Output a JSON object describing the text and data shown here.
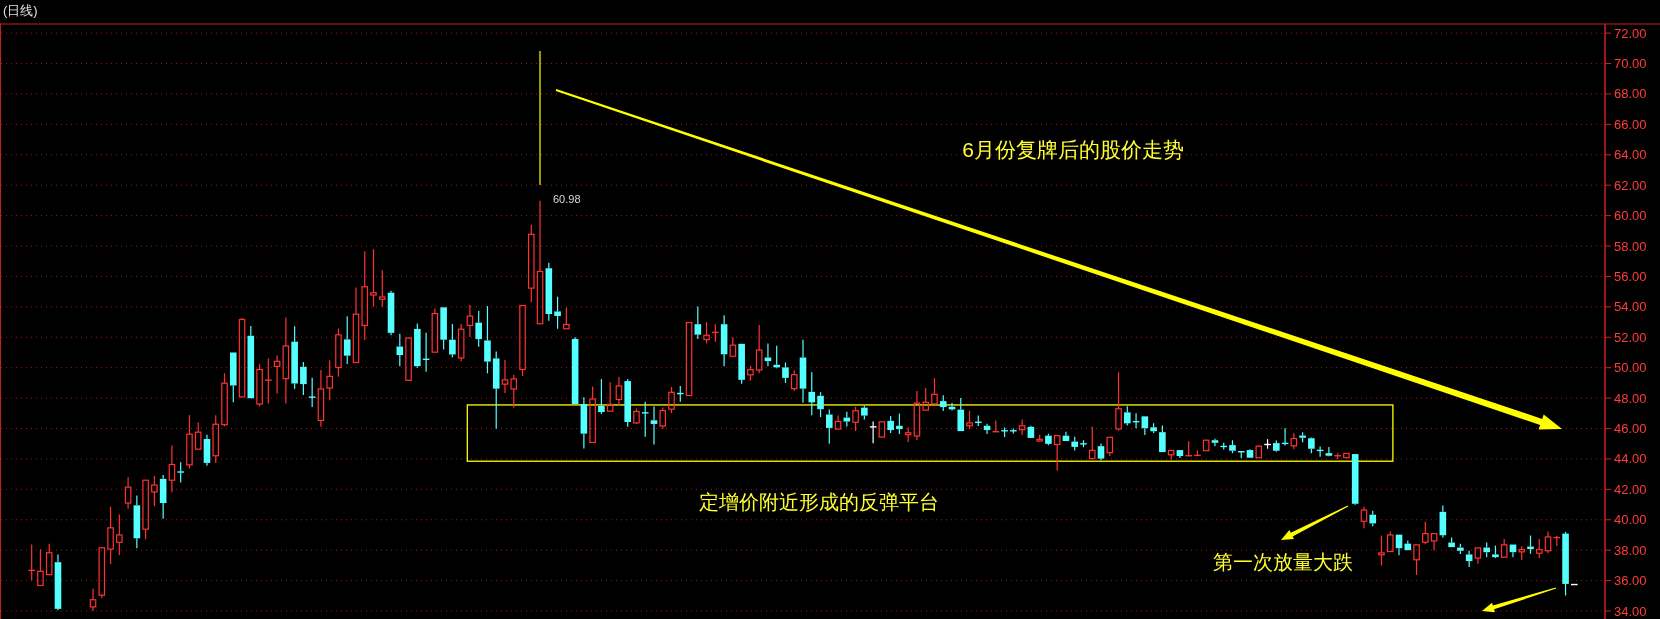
{
  "chart_data": {
    "type": "candlestick",
    "title": "(日线)",
    "categories": [
      null,
      null,
      null,
      null,
      null,
      null,
      null,
      null,
      null,
      null,
      null,
      null,
      null,
      null,
      null,
      null,
      null,
      null,
      null,
      null,
      null,
      null,
      null,
      null,
      null,
      null,
      null,
      null,
      null,
      null,
      null,
      null,
      null,
      null,
      null,
      null,
      null,
      null,
      null,
      null,
      null,
      null,
      null,
      null,
      null,
      null,
      null,
      null,
      null,
      null,
      null,
      null,
      null,
      null,
      null,
      null,
      null,
      null,
      null,
      null,
      null,
      null,
      null,
      null,
      null,
      null,
      null,
      null,
      null,
      null,
      null,
      null,
      null,
      null,
      null,
      null,
      null,
      null,
      null,
      null,
      null,
      null,
      null,
      null,
      null,
      null,
      null,
      null,
      null,
      null,
      null,
      null,
      null,
      null,
      null,
      null,
      null,
      null,
      null,
      null,
      null,
      null,
      null,
      null,
      null,
      null,
      null,
      null,
      null,
      null,
      null,
      null,
      null,
      null,
      null,
      null,
      null,
      null,
      null,
      null,
      null,
      null,
      null,
      null,
      null,
      null,
      null,
      null,
      null,
      null,
      null,
      null,
      null,
      null,
      null,
      null,
      null,
      null,
      null,
      null,
      null,
      null,
      null,
      null,
      null,
      null,
      null,
      null,
      null,
      null,
      null,
      null,
      null,
      null,
      null,
      null,
      null,
      null,
      null,
      null,
      null,
      null,
      null,
      null,
      null,
      null,
      null,
      null,
      null,
      null,
      null,
      null,
      null,
      null,
      null,
      null,
      null,
      null,
      null,
      null,
      null,
      null,
      null
    ],
    "ohlc": [
      null,
      null,
      null,
      [
        36.67,
        38.37,
        36.03,
        36.67
      ],
      [
        35.68,
        38.05,
        35.64,
        36.61
      ],
      [
        36.39,
        38.43,
        36.39,
        37.83
      ],
      [
        37.21,
        37.72,
        34.05,
        34.14
      ],
      null,
      null,
      null,
      [
        34.27,
        35.47,
        34.0,
        34.74
      ],
      [
        35.04,
        38.16,
        34.85,
        38.16
      ],
      [
        38.07,
        40.86,
        37.1,
        39.47
      ],
      [
        38.52,
        40.35,
        37.68,
        39.0
      ],
      [
        41.1,
        42.8,
        40.73,
        42.15
      ],
      [
        40.95,
        41.59,
        38.13,
        38.78
      ],
      [
        39.38,
        42.6,
        38.71,
        42.6
      ],
      [
        41.83,
        42.88,
        40.88,
        42.28
      ],
      [
        42.69,
        42.95,
        40.07,
        41.1
      ],
      [
        42.6,
        44.88,
        41.81,
        43.63
      ],
      [
        43.14,
        43.78,
        42.45,
        43.14
      ],
      [
        43.61,
        46.88,
        43.37,
        45.63
      ],
      [
        44.64,
        46.4,
        44.64,
        45.76
      ],
      [
        45.31,
        45.59,
        43.55,
        43.74
      ],
      [
        44.21,
        46.88,
        43.74,
        46.28
      ],
      [
        46.25,
        49.63,
        46.15,
        48.98
      ],
      [
        51.0,
        51.0,
        47.72,
        48.83
      ],
      [
        48.08,
        53.26,
        48.08,
        53.17
      ],
      [
        52.1,
        52.74,
        47.99,
        47.99
      ],
      [
        47.61,
        50.23,
        47.46,
        49.88
      ],
      [
        49.18,
        50.61,
        47.65,
        49.18
      ],
      [
        50.08,
        50.81,
        48.3,
        50.42
      ],
      [
        49.28,
        53.3,
        47.65,
        51.43
      ],
      [
        51.71,
        52.72,
        48.62,
        48.96
      ],
      [
        50.06,
        50.38,
        48.21,
        48.92
      ],
      [
        48.06,
        49.33,
        47.41,
        48.06
      ],
      [
        46.53,
        49.84,
        46.12,
        48.6
      ],
      [
        48.66,
        50.49,
        47.86,
        49.43
      ],
      [
        50.01,
        52.57,
        49.41,
        52.16
      ],
      [
        51.86,
        53.39,
        50.25,
        50.79
      ],
      [
        50.34,
        55.28,
        50.34,
        53.52
      ],
      [
        52.78,
        57.66,
        51.82,
        55.32
      ],
      [
        54.78,
        57.79,
        54.01,
        54.93
      ],
      [
        54.5,
        56.41,
        54.01,
        54.65
      ],
      [
        54.93,
        55.06,
        52.14,
        52.29
      ],
      [
        51.39,
        52.23,
        50.1,
        50.83
      ],
      [
        49.17,
        52.0,
        49.17,
        51.95
      ],
      [
        52.55,
        52.9,
        50.0,
        50.1
      ],
      [
        50.55,
        52.29,
        49.73,
        50.55
      ],
      [
        51.02,
        53.9,
        51.02,
        53.56
      ],
      [
        53.97,
        53.97,
        51.19,
        51.84
      ],
      [
        51.84,
        52.87,
        50.68,
        50.87
      ],
      [
        50.64,
        52.87,
        50.42,
        52.53
      ],
      [
        52.78,
        54.12,
        52.01,
        53.39
      ],
      [
        52.96,
        53.73,
        51.37,
        51.88
      ],
      [
        51.79,
        54.05,
        49.63,
        50.4
      ],
      [
        50.61,
        51.07,
        45.99,
        48.62
      ],
      [
        48.92,
        50.51,
        48.34,
        49.2
      ],
      [
        48.6,
        49.54,
        47.37,
        49.26
      ],
      [
        49.88,
        54.09,
        49.45,
        54.09
      ],
      [
        55.23,
        59.4,
        54.31,
        58.77
      ],
      [
        52.89,
        60.98,
        52.89,
        56.33
      ],
      [
        56.54,
        56.9,
        53.08,
        53.53
      ],
      [
        53.7,
        54.67,
        52.56,
        53.4
      ],
      [
        52.56,
        53.94,
        52.56,
        52.84
      ],
      [
        51.89,
        52.0,
        47.61,
        47.61
      ],
      [
        47.61,
        48.06,
        44.69,
        45.66
      ],
      [
        45.08,
        48.77,
        45.04,
        47.94
      ],
      [
        47.48,
        49.25,
        46.95,
        47.08
      ],
      [
        47.14,
        49.05,
        47.14,
        47.59
      ],
      [
        47.91,
        49.38,
        47.53,
        48.8
      ],
      [
        49.12,
        49.25,
        46.11,
        46.43
      ],
      [
        46.37,
        47.31,
        46.3,
        47.12
      ],
      [
        47.03,
        47.76,
        45.46,
        47.03
      ],
      [
        46.54,
        47.44,
        44.95,
        46.3
      ],
      [
        46.17,
        47.38,
        45.98,
        47.18
      ],
      [
        47.27,
        48.73,
        47.01,
        48.38
      ],
      [
        48.3,
        48.8,
        47.76,
        48.3
      ],
      [
        48.17,
        52.97,
        48.17,
        52.97
      ],
      [
        52.86,
        54.02,
        51.89,
        52.17
      ],
      [
        51.85,
        52.99,
        51.59,
        52.13
      ],
      [
        52.32,
        52.86,
        51.7,
        52.32
      ],
      [
        52.86,
        53.44,
        50.09,
        50.88
      ],
      [
        50.75,
        52.0,
        50.75,
        51.48
      ],
      [
        51.57,
        51.57,
        48.95,
        49.2
      ],
      [
        49.53,
        50.13,
        49.14,
        49.87
      ],
      [
        49.85,
        52.8,
        49.63,
        51.16
      ],
      [
        50.67,
        51.59,
        50.09,
        50.43
      ],
      [
        50.19,
        51.44,
        49.96,
        50.02
      ],
      [
        50.02,
        50.34,
        48.99,
        49.33
      ],
      [
        48.62,
        49.83,
        48.49,
        49.54
      ],
      [
        50.67,
        51.83,
        47.7,
        48.62
      ],
      [
        48.41,
        49.7,
        46.88,
        47.72
      ],
      [
        48.15,
        48.39,
        46.75,
        47.27
      ],
      [
        46.92,
        47.25,
        45.0,
        46.04
      ],
      [
        45.96,
        46.85,
        45.96,
        46.46
      ],
      [
        46.72,
        47.11,
        46.13,
        46.46
      ],
      [
        46.41,
        47.43,
        45.83,
        47.17
      ],
      [
        47.37,
        47.49,
        46.59,
        46.85
      ],
      [
        46.11,
        46.46,
        45.03,
        46.11
      ],
      [
        45.44,
        46.44,
        45.44,
        46.44
      ],
      [
        46.5,
        46.82,
        45.7,
        45.9
      ],
      [
        46.18,
        46.98,
        45.64,
        45.96
      ],
      [
        45.59,
        46.07,
        45.12,
        45.72
      ],
      [
        45.51,
        48.47,
        45.25,
        47.67
      ],
      [
        47.21,
        48.66,
        47.21,
        47.73
      ],
      [
        47.62,
        49.31,
        47.62,
        48.25
      ],
      [
        47.8,
        48.19,
        47.15,
        47.41
      ],
      [
        47.43,
        47.67,
        47.19,
        47.26
      ],
      [
        47.24,
        48.01,
        45.83,
        45.83
      ],
      [
        46.18,
        47.17,
        45.96,
        46.37
      ],
      [
        46.41,
        46.85,
        46.16,
        46.41
      ],
      [
        46.18,
        46.31,
        45.64,
        45.9
      ],
      [
        45.79,
        46.52,
        45.79,
        45.79
      ],
      [
        45.85,
        46.07,
        45.44,
        45.85
      ],
      [
        45.85,
        46.0,
        45.68,
        45.85
      ],
      [
        45.92,
        46.59,
        45.57,
        46.18
      ],
      [
        46.11,
        46.18,
        45.38,
        45.38
      ],
      [
        45.18,
        45.59,
        45.14,
        45.29
      ],
      [
        45.53,
        45.66,
        44.9,
        44.99
      ],
      [
        44.95,
        45.53,
        43.24,
        45.53
      ],
      [
        45.53,
        45.79,
        45.18,
        45.18
      ],
      [
        45.14,
        45.46,
        44.56,
        44.79
      ],
      [
        44.99,
        45.23,
        44.77,
        44.99
      ],
      [
        44.02,
        46.13,
        44.02,
        44.56
      ],
      [
        44.84,
        45.01,
        43.91,
        44.02
      ],
      [
        44.41,
        45.42,
        44.19,
        45.42
      ],
      [
        45.97,
        49.7,
        45.86,
        47.3
      ],
      [
        47.06,
        47.46,
        46.19,
        46.34
      ],
      [
        46.45,
        47.0,
        46.02,
        46.45
      ],
      [
        46.8,
        46.8,
        45.58,
        46.02
      ],
      [
        46.08,
        46.34,
        45.71,
        45.82
      ],
      [
        45.76,
        46.19,
        44.45,
        44.45
      ],
      [
        44.27,
        44.56,
        43.95,
        44.56
      ],
      [
        44.58,
        44.58,
        44.06,
        44.19
      ],
      [
        44.21,
        45.17,
        44.21,
        44.21
      ],
      [
        44.23,
        44.56,
        44.23,
        44.23
      ],
      [
        44.54,
        45.28,
        44.54,
        45.23
      ],
      [
        45.23,
        45.32,
        44.84,
        45.06
      ],
      [
        44.82,
        45.06,
        44.62,
        44.82
      ],
      [
        44.91,
        45.23,
        44.38,
        44.54
      ],
      [
        44.5,
        44.5,
        44.06,
        44.45
      ],
      [
        44.58,
        44.64,
        44.08,
        44.08
      ],
      [
        44.08,
        44.88,
        44.08,
        44.84
      ],
      [
        44.95,
        45.3,
        44.67,
        44.95
      ],
      [
        45.04,
        45.21,
        44.47,
        44.54
      ],
      [
        45.02,
        46.02,
        44.88,
        45.02
      ],
      [
        44.86,
        45.69,
        44.64,
        45.34
      ],
      [
        45.54,
        45.76,
        45.1,
        45.39
      ],
      [
        45.36,
        45.41,
        44.38,
        44.67
      ],
      [
        44.56,
        44.82,
        44.14,
        44.56
      ],
      [
        44.38,
        44.78,
        44.17,
        44.21
      ],
      [
        44.21,
        44.38,
        43.99,
        44.21
      ],
      [
        44.08,
        44.36,
        44.08,
        44.36
      ],
      [
        44.32,
        44.32,
        40.98,
        41.05
      ],
      [
        39.9,
        40.85,
        39.44,
        40.64
      ],
      [
        40.33,
        40.59,
        39.57,
        39.76
      ],
      [
        37.7,
        38.96,
        36.99,
        37.82
      ],
      [
        37.91,
        39.22,
        37.91,
        39.0
      ],
      [
        39.02,
        39.02,
        37.67,
        38.13
      ],
      [
        38.43,
        38.63,
        38.0,
        38.0
      ],
      [
        37.37,
        38.35,
        36.37,
        38.35
      ],
      [
        38.52,
        39.87,
        38.39,
        39.09
      ],
      [
        38.61,
        39.09,
        37.98,
        39.09
      ],
      [
        40.52,
        40.93,
        38.83,
        38.98
      ],
      [
        38.5,
        38.83,
        38.2,
        38.2
      ],
      [
        38.17,
        38.43,
        37.74,
        37.96
      ],
      [
        37.72,
        37.96,
        36.89,
        37.28
      ],
      [
        37.48,
        38.15,
        37.11,
        38.15
      ],
      [
        38.17,
        38.5,
        37.54,
        37.87
      ],
      [
        37.72,
        38.3,
        37.48,
        37.54
      ],
      [
        37.54,
        38.74,
        37.54,
        38.35
      ],
      [
        38.37,
        38.37,
        37.54,
        37.87
      ],
      [
        37.89,
        38.26,
        37.35,
        38.04
      ],
      [
        38.24,
        38.96,
        37.76,
        38.07
      ],
      [
        37.8,
        38.74,
        37.48,
        38.04
      ],
      [
        37.96,
        39.22,
        37.8,
        38.87
      ],
      [
        38.83,
        38.93,
        38.28,
        38.83
      ],
      [
        39.09,
        39.2,
        35.02,
        35.78
      ],
      [
        35.74,
        35.74,
        35.74,
        35.74
      ],
      null,
      null,
      null
    ],
    "colors": [
      null,
      null,
      null,
      "#ff3232",
      "#ff3232",
      "#ff3232",
      "#54ffff",
      null,
      null,
      null,
      "#ff3232",
      "#ff3232",
      "#ff3232",
      "#ff3232",
      "#ff3232",
      "#54ffff",
      "#ff3232",
      "#ff3232",
      "#54ffff",
      "#ff3232",
      "#54ffff",
      "#ff3232",
      "#ff3232",
      "#54ffff",
      "#ff3232",
      "#ff3232",
      "#54ffff",
      "#ff3232",
      "#54ffff",
      "#ff3232",
      "#ff3232",
      "#ff3232",
      "#ff3232",
      "#54ffff",
      "#54ffff",
      "#54ffff",
      "#ff3232",
      "#ff3232",
      "#ff3232",
      "#54ffff",
      "#ff3232",
      "#ff3232",
      "#ff3232",
      "#ff3232",
      "#54ffff",
      "#54ffff",
      "#ff3232",
      "#54ffff",
      "#54ffff",
      "#ff3232",
      "#54ffff",
      "#54ffff",
      "#ff3232",
      "#ff3232",
      "#54ffff",
      "#54ffff",
      "#54ffff",
      "#ff3232",
      "#ff3232",
      "#ff3232",
      "#ff3232",
      "#ff3232",
      "#54ffff",
      "#54ffff",
      "#ff3232",
      "#54ffff",
      "#54ffff",
      "#ff3232",
      "#54ffff",
      "#ff3232",
      "#ff3232",
      "#54ffff",
      "#ff3232",
      "#54ffff",
      "#54ffff",
      "#ff3232",
      "#ff3232",
      "#54ffff",
      "#ff3232",
      "#54ffff",
      "#ff3232",
      "#ff3232",
      "#54ffff",
      "#ff3232",
      "#54ffff",
      "#ff3232",
      "#ff3232",
      "#54ffff",
      "#54ffff",
      "#54ffff",
      "#ff3232",
      "#54ffff",
      "#54ffff",
      "#54ffff",
      "#54ffff",
      "#ff3232",
      "#54ffff",
      "#ff3232",
      "#54ffff",
      "#ffffff",
      "#ff3232",
      "#54ffff",
      "#54ffff",
      "#ff3232",
      "#ff3232",
      "#ff3232",
      "#ff3232",
      "#54ffff",
      "#54ffff",
      "#54ffff",
      "#ff3232",
      "#54ffff",
      "#54ffff",
      "#ff3232",
      "#54ffff",
      "#54ffff",
      "#ff3232",
      "#54ffff",
      "#ff3232",
      "#54ffff",
      "#ff3232",
      "#54ffff",
      "#54ffff",
      "#54ffff",
      "#ff3232",
      "#54ffff",
      "#ff3232",
      "#ff3232",
      "#54ffff",
      "#54ffff",
      "#54ffff",
      "#54ffff",
      "#54ffff",
      "#ff3232",
      "#54ffff",
      "#ff3232",
      "#ff3232",
      "#ff3232",
      "#54ffff",
      "#54ffff",
      "#54ffff",
      "#54ffff",
      "#54ffff",
      "#ff3232",
      "#ffffff",
      "#54ffff",
      "#54ffff",
      "#ff3232",
      "#54ffff",
      "#54ffff",
      "#54ffff",
      "#54ffff",
      "#ff3232",
      "#ff3232",
      "#54ffff",
      "#ff3232",
      "#54ffff",
      "#ff3232",
      "#ff3232",
      "#54ffff",
      "#54ffff",
      "#ff3232",
      "#ff3232",
      "#ff3232",
      "#54ffff",
      "#54ffff",
      "#54ffff",
      "#54ffff",
      "#ff3232",
      "#54ffff",
      "#54ffff",
      "#ff3232",
      "#54ffff",
      "#ff3232",
      "#54ffff",
      "#ff3232",
      "#ff3232",
      "#ff3232",
      "#54ffff",
      "#ffffff",
      null,
      null,
      null
    ],
    "ylim": [
      34,
      72.6
    ],
    "yticks": [
      {
        "value": 34,
        "label": "34.00"
      },
      {
        "value": 36,
        "label": "36.00"
      },
      {
        "value": 38,
        "label": "38.00"
      },
      {
        "value": 40,
        "label": "40.00"
      },
      {
        "value": 42,
        "label": "42.00"
      },
      {
        "value": 44,
        "label": "44.00"
      },
      {
        "value": 46,
        "label": "46.00"
      },
      {
        "value": 48,
        "label": "48.00"
      },
      {
        "value": 50,
        "label": "50.00"
      },
      {
        "value": 52,
        "label": "52.00"
      },
      {
        "value": 54,
        "label": "54.00"
      },
      {
        "value": 56,
        "label": "56.00"
      },
      {
        "value": 58,
        "label": "58.00"
      },
      {
        "value": 60,
        "label": "60.00"
      },
      {
        "value": 62,
        "label": "62.00"
      },
      {
        "value": 64,
        "label": "64.00"
      },
      {
        "value": 66,
        "label": "66.00"
      },
      {
        "value": 68,
        "label": "68.00"
      },
      {
        "value": 70,
        "label": "70.00"
      },
      {
        "value": 72,
        "label": "72.00"
      }
    ],
    "grid": "y",
    "annotations": [
      "60.98",
      "6月份复牌后的股价走势",
      "定增价附近形成的反弹平台",
      "第一次放量大跌"
    ]
  }
}
